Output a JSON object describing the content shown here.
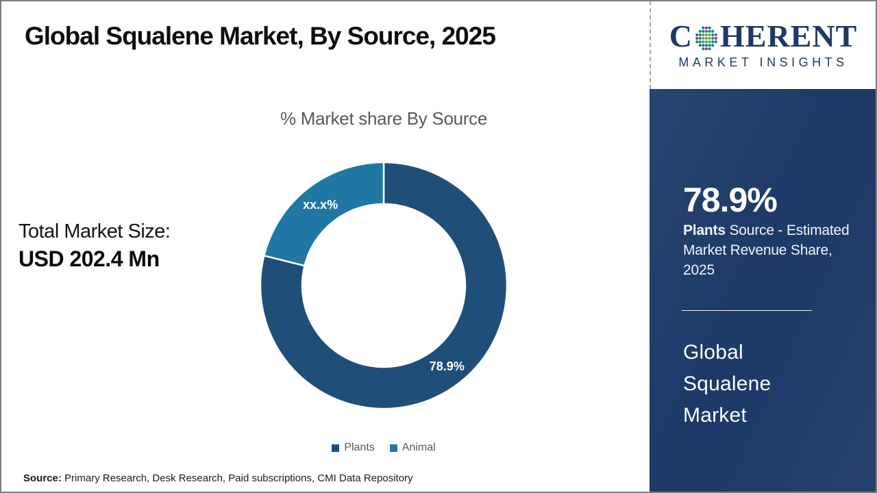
{
  "page": {
    "title": "Global Squalene Market, By Source, 2025",
    "source_label": "Source:",
    "source_text": " Primary Research, Desk Research, Paid subscriptions, CMI Data Repository"
  },
  "left_panel": {
    "total_label": "Total Market Size:",
    "total_value": "USD 202.4 Mn"
  },
  "logo": {
    "brand_first_letter": "C",
    "brand_rest": "HERENT",
    "tagline": "MARKET INSIGHTS",
    "brand_color": "#1f3864",
    "globe_colors": {
      "core": "#61a744",
      "mid": "#1d7a8a",
      "outer": "#c01f5f"
    }
  },
  "sidebar": {
    "stat_value": "78.9%",
    "stat_desc_bold": "Plants",
    "stat_desc_rest": " Source - Estimated Market Revenue Share, 2025",
    "market_title_lines": [
      "Global",
      "Squalene",
      "Market"
    ],
    "background_color": "#1e3a68"
  },
  "chart_data": {
    "type": "pie",
    "subtype": "donut",
    "title": "% Market share By Source",
    "categories": [
      "Plants",
      "Animal"
    ],
    "values": [
      78.9,
      21.1
    ],
    "display_labels": [
      "78.9%",
      "xx.x%"
    ],
    "colors": [
      "#1f4e79",
      "#2077a4"
    ],
    "label_color": "#ffffff",
    "legend_position": "bottom",
    "start_angle_deg": 0,
    "direction": "clockwise",
    "inner_radius_ratio": 0.66
  }
}
